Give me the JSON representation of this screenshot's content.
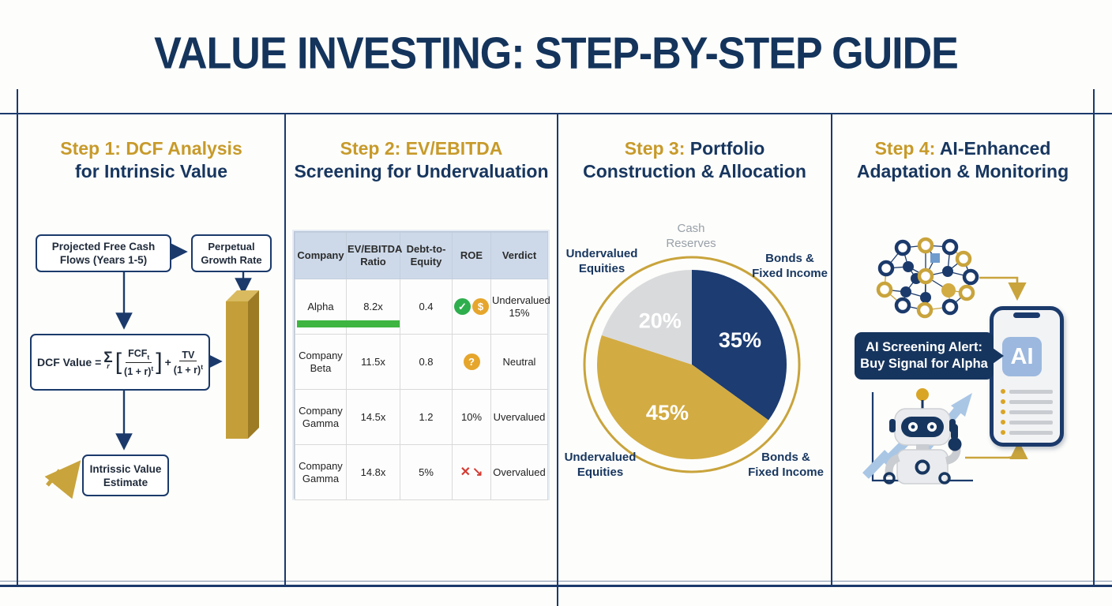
{
  "title": "VALUE INVESTING: STEP-BY-STEP GUIDE",
  "colors": {
    "navy": "#17365f",
    "gold": "#c79a2a",
    "light_blue": "#a9c6e5",
    "green_bar": "#3db540",
    "badge_green": "#2fae4d",
    "badge_gold": "#e6a62c",
    "red": "#d43c34",
    "table_header_bg": "#cdd9e9"
  },
  "icons": {
    "check": "✓",
    "dollar": "$",
    "question": "?",
    "cross": "✕",
    "trend_down": "↘"
  },
  "steps": {
    "step1": {
      "line1_gold": "Step 1: DCF Analysis",
      "line1_navy": "",
      "line2": "for Intrinsic Value",
      "flow": {
        "box1_line1": "Projected Free Cash",
        "box1_line2": "Flows (Years 1-5)",
        "box2_line1": "Perpetual",
        "box2_line2": "Growth Rate",
        "estimate_line1": "Intrissic Value",
        "estimate_line2": "Estimate",
        "formula": {
          "lead": "DCF Value = ",
          "sigma": "Σ",
          "sigma_sub": "r",
          "lbracket": "[",
          "num1": "FCF",
          "num1_sub": "t",
          "den1": "(1 + r)",
          "den1_sup": "t",
          "rbracket": "]",
          "plus": "+",
          "num2": "TV",
          "den2": "(1 + r)",
          "den2_sup": "t"
        }
      }
    },
    "step2": {
      "line1_gold": "Step 2: EV/EBITDA",
      "line1_navy": "",
      "line2": "Screening for Undervaluation"
    },
    "step3": {
      "line1_gold": "Step 3:",
      "line1_navy": " Portfolio",
      "line2": "Construction & Allocation"
    },
    "step4": {
      "line1_gold": "Step 4:",
      "line1_navy": " AI-Enhanced",
      "line2": "Adaptation & Monitoring",
      "alert_text": "AI Screening Alert:\nBuy Signal for Alpha",
      "phone_ai": "AI"
    }
  },
  "table": {
    "headers": [
      "Company",
      "EV/EBITDA Ratio",
      "Debt-to-Equity",
      "ROE",
      "Verdict"
    ],
    "rows": [
      {
        "company": "Alpha",
        "ev": "8.2x",
        "de": "0.4",
        "roe": "",
        "verdict": "Undervalued 15%"
      },
      {
        "company": "Company Beta",
        "ev": "11.5x",
        "de": "0.8",
        "roe": "",
        "verdict": "Neutral"
      },
      {
        "company": "Company Gamma",
        "ev": "14.5x",
        "de": "1.2",
        "roe": "10%",
        "verdict": "Uvervalued"
      },
      {
        "company": "Company Gamma",
        "ev": "14.8x",
        "de": "5%",
        "roe": "",
        "verdict": "Overvalued"
      }
    ]
  },
  "chart_data": {
    "type": "pie",
    "title": "Portfolio Construction & Allocation",
    "slices": [
      {
        "label": "Bonds & Fixed Income",
        "value": 35,
        "color": "#1c3c72"
      },
      {
        "label": "Undervalued Equities",
        "value": 45,
        "color": "#d2ab42"
      },
      {
        "label": "Cash Reserves",
        "value": 20,
        "color": "#d9dadc"
      }
    ],
    "start_angle_deg": 0,
    "direction": "clockwise",
    "ring_color": "#c9a43c",
    "labels": {
      "top": "Cash\nReserves",
      "top_left": "Undervalued\nEquities",
      "top_right": "Bonds &\nFixed Income",
      "bottom_left": "Undervalued\nEquities",
      "bottom_right": "Bonds &\nFixed Income"
    }
  }
}
